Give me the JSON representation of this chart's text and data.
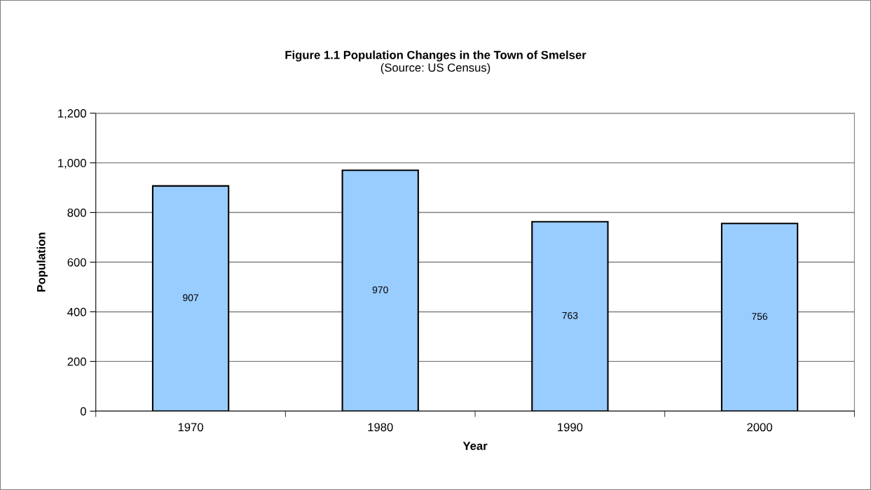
{
  "chart_data": {
    "type": "bar",
    "title": "Figure 1.1 Population Changes in the Town of Smelser",
    "subtitle": "(Source: US Census)",
    "xlabel": "Year",
    "ylabel": "Population",
    "categories": [
      "1970",
      "1980",
      "1990",
      "2000"
    ],
    "values": [
      907,
      970,
      763,
      756
    ],
    "color": "#99ccff",
    "ylim": [
      0,
      1200
    ],
    "yticks": [
      {
        "value": 0,
        "label": "0"
      },
      {
        "value": 200,
        "label": "200"
      },
      {
        "value": 400,
        "label": "400"
      },
      {
        "value": 600,
        "label": "600"
      },
      {
        "value": 800,
        "label": "800"
      },
      {
        "value": 1000,
        "label": "1,000"
      },
      {
        "value": 1200,
        "label": "1,200"
      }
    ],
    "grid": "y",
    "data_labels": true
  }
}
